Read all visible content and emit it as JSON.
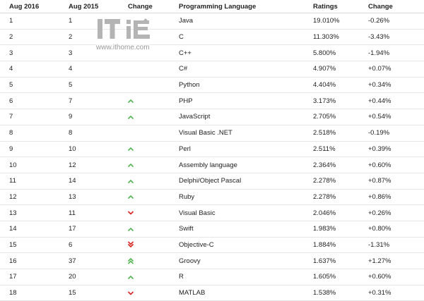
{
  "columns": {
    "current": "Aug 2016",
    "previous": "Aug 2015",
    "change": "Change",
    "language": "Programming Language",
    "ratings": "Ratings",
    "delta": "Change"
  },
  "colors": {
    "up": "#5cb85c",
    "down": "#d9302c",
    "watermark": "#b4b4b4"
  },
  "watermark": {
    "url": "www.ithome.com"
  },
  "rows": [
    {
      "current": "1",
      "previous": "1",
      "arrow": "",
      "language": "Java",
      "ratings": "19.010%",
      "delta": "-0.26%"
    },
    {
      "current": "2",
      "previous": "2",
      "arrow": "",
      "language": "C",
      "ratings": "11.303%",
      "delta": "-3.43%"
    },
    {
      "current": "3",
      "previous": "3",
      "arrow": "",
      "language": "C++",
      "ratings": "5.800%",
      "delta": "-1.94%"
    },
    {
      "current": "4",
      "previous": "4",
      "arrow": "",
      "language": "C#",
      "ratings": "4.907%",
      "delta": "+0.07%"
    },
    {
      "current": "5",
      "previous": "5",
      "arrow": "",
      "language": "Python",
      "ratings": "4.404%",
      "delta": "+0.34%"
    },
    {
      "current": "6",
      "previous": "7",
      "arrow": "up",
      "language": "PHP",
      "ratings": "3.173%",
      "delta": "+0.44%"
    },
    {
      "current": "7",
      "previous": "9",
      "arrow": "up",
      "language": "JavaScript",
      "ratings": "2.705%",
      "delta": "+0.54%"
    },
    {
      "current": "8",
      "previous": "8",
      "arrow": "",
      "language": "Visual Basic .NET",
      "ratings": "2.518%",
      "delta": "-0.19%"
    },
    {
      "current": "9",
      "previous": "10",
      "arrow": "up",
      "language": "Perl",
      "ratings": "2.511%",
      "delta": "+0.39%"
    },
    {
      "current": "10",
      "previous": "12",
      "arrow": "up",
      "language": "Assembly language",
      "ratings": "2.364%",
      "delta": "+0.60%"
    },
    {
      "current": "11",
      "previous": "14",
      "arrow": "up",
      "language": "Delphi/Object Pascal",
      "ratings": "2.278%",
      "delta": "+0.87%"
    },
    {
      "current": "12",
      "previous": "13",
      "arrow": "up",
      "language": "Ruby",
      "ratings": "2.278%",
      "delta": "+0.86%"
    },
    {
      "current": "13",
      "previous": "11",
      "arrow": "down",
      "language": "Visual Basic",
      "ratings": "2.046%",
      "delta": "+0.26%"
    },
    {
      "current": "14",
      "previous": "17",
      "arrow": "up",
      "language": "Swift",
      "ratings": "1.983%",
      "delta": "+0.80%"
    },
    {
      "current": "15",
      "previous": "6",
      "arrow": "double-down",
      "language": "Objective-C",
      "ratings": "1.884%",
      "delta": "-1.31%"
    },
    {
      "current": "16",
      "previous": "37",
      "arrow": "double-up",
      "language": "Groovy",
      "ratings": "1.637%",
      "delta": "+1.27%"
    },
    {
      "current": "17",
      "previous": "20",
      "arrow": "up",
      "language": "R",
      "ratings": "1.605%",
      "delta": "+0.60%"
    },
    {
      "current": "18",
      "previous": "15",
      "arrow": "down",
      "language": "MATLAB",
      "ratings": "1.538%",
      "delta": "+0.31%"
    }
  ]
}
